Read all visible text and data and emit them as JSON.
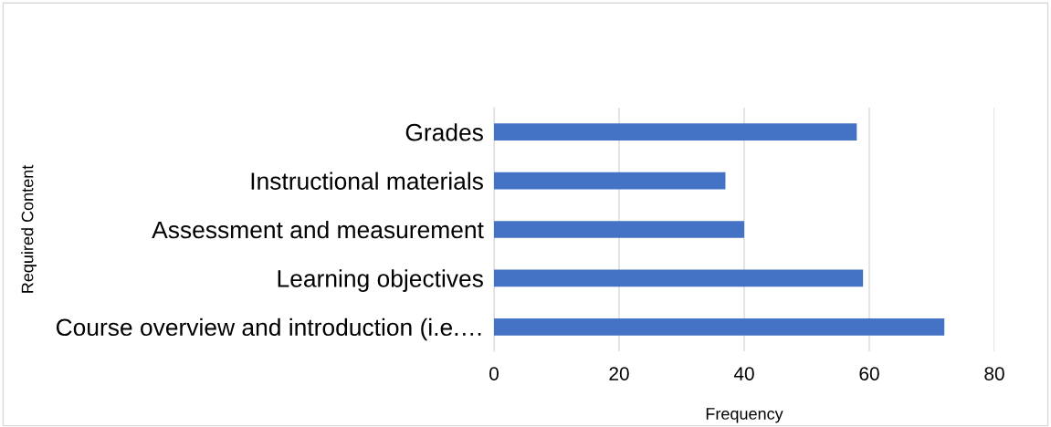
{
  "chart_data": {
    "type": "bar",
    "orientation": "horizontal",
    "xlabel": "Frequency",
    "ylabel": "Required Content",
    "categories": [
      "Grades",
      "Instructional materials",
      "Assessment and measurement",
      "Learning objectives",
      "Course overview and introduction (i.e.…"
    ],
    "values": [
      58,
      37,
      40,
      59,
      72
    ],
    "color": "#4472c4",
    "xlim": [
      0,
      80
    ],
    "xticks": [
      0,
      20,
      40,
      60,
      80
    ],
    "grid": "x",
    "legend": false
  }
}
